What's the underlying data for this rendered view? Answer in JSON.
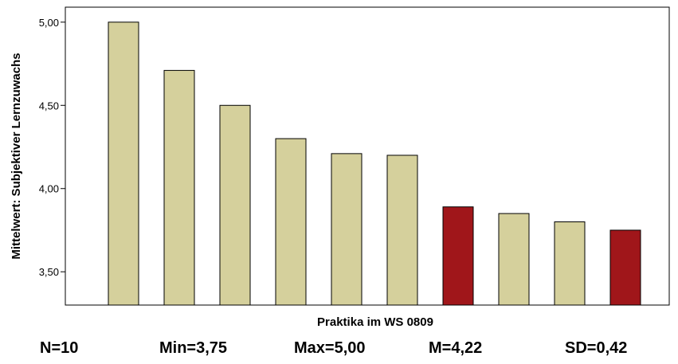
{
  "chart_data": {
    "type": "bar",
    "title": "",
    "xlabel": "Praktika im WS 0809",
    "ylabel": "Mittelwert: Subjektiver Lernzuwachs",
    "ylim": [
      3.3,
      5.09
    ],
    "yticks": [
      3.5,
      4.0,
      4.5,
      5.0
    ],
    "ytick_labels": [
      "3,50",
      "4,00",
      "4,50",
      "5,00"
    ],
    "values": [
      5.0,
      4.71,
      4.5,
      4.3,
      4.21,
      4.2,
      3.89,
      3.85,
      3.8,
      3.75
    ],
    "highlighted": [
      false,
      false,
      false,
      false,
      false,
      false,
      true,
      false,
      false,
      true
    ],
    "colors": {
      "normal": "#d5d09c",
      "highlight": "#a0161a",
      "stroke": "#000000"
    },
    "grid": false
  },
  "stats": {
    "n": "N=10",
    "min": "Min=3,75",
    "max": "Max=5,00",
    "mean": "M=4,22",
    "sd": "SD=0,42"
  }
}
